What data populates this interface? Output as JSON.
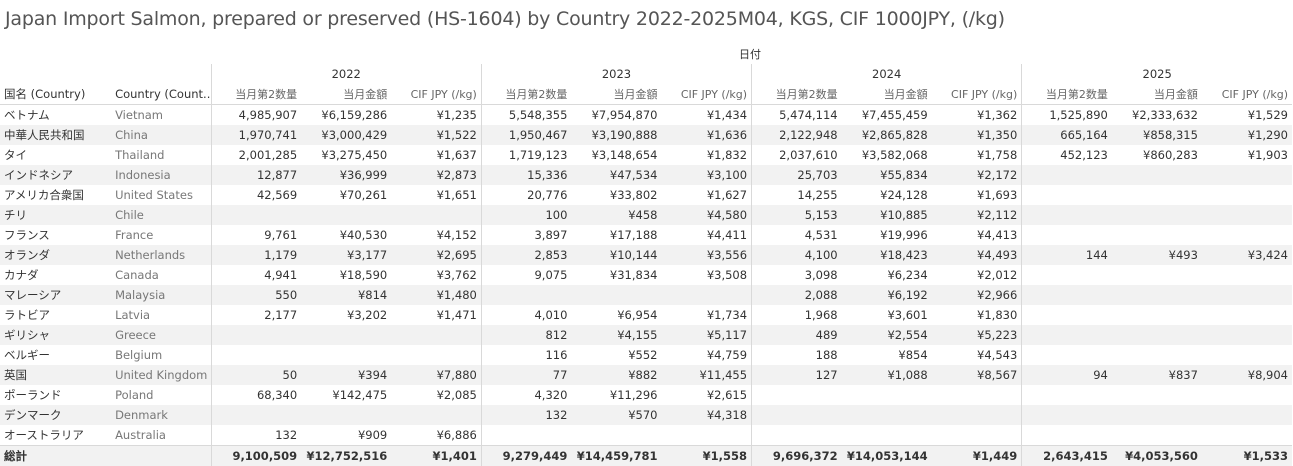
{
  "title": "Japan Import Salmon, prepared or preserved (HS-1604) by Country 2022-2025M04, KGS, CIF 1000JPY, (/kg)",
  "date_header": "日付",
  "row_headers": [
    "国名 (Country)",
    "Country (Count.."
  ],
  "years": [
    "2022",
    "2023",
    "2024",
    "2025"
  ],
  "measures": [
    "当月第2数量",
    "当月金額",
    "CIF JPY (/kg)"
  ],
  "rows": [
    {
      "jp": "ベトナム",
      "en": "Vietnam",
      "v": [
        [
          "4,985,907",
          "¥6,159,286",
          "¥1,235"
        ],
        [
          "5,548,355",
          "¥7,954,870",
          "¥1,434"
        ],
        [
          "5,474,114",
          "¥7,455,459",
          "¥1,362"
        ],
        [
          "1,525,890",
          "¥2,333,632",
          "¥1,529"
        ]
      ]
    },
    {
      "jp": "中華人民共和国",
      "en": "China",
      "v": [
        [
          "1,970,741",
          "¥3,000,429",
          "¥1,522"
        ],
        [
          "1,950,467",
          "¥3,190,888",
          "¥1,636"
        ],
        [
          "2,122,948",
          "¥2,865,828",
          "¥1,350"
        ],
        [
          "665,164",
          "¥858,315",
          "¥1,290"
        ]
      ]
    },
    {
      "jp": "タイ",
      "en": "Thailand",
      "v": [
        [
          "2,001,285",
          "¥3,275,450",
          "¥1,637"
        ],
        [
          "1,719,123",
          "¥3,148,654",
          "¥1,832"
        ],
        [
          "2,037,610",
          "¥3,582,068",
          "¥1,758"
        ],
        [
          "452,123",
          "¥860,283",
          "¥1,903"
        ]
      ]
    },
    {
      "jp": "インドネシア",
      "en": "Indonesia",
      "v": [
        [
          "12,877",
          "¥36,999",
          "¥2,873"
        ],
        [
          "15,336",
          "¥47,534",
          "¥3,100"
        ],
        [
          "25,703",
          "¥55,834",
          "¥2,172"
        ],
        [
          "",
          "",
          ""
        ]
      ]
    },
    {
      "jp": "アメリカ合衆国",
      "en": "United States",
      "v": [
        [
          "42,569",
          "¥70,261",
          "¥1,651"
        ],
        [
          "20,776",
          "¥33,802",
          "¥1,627"
        ],
        [
          "14,255",
          "¥24,128",
          "¥1,693"
        ],
        [
          "",
          "",
          ""
        ]
      ]
    },
    {
      "jp": "チリ",
      "en": "Chile",
      "v": [
        [
          "",
          "",
          ""
        ],
        [
          "100",
          "¥458",
          "¥4,580"
        ],
        [
          "5,153",
          "¥10,885",
          "¥2,112"
        ],
        [
          "",
          "",
          ""
        ]
      ]
    },
    {
      "jp": "フランス",
      "en": "France",
      "v": [
        [
          "9,761",
          "¥40,530",
          "¥4,152"
        ],
        [
          "3,897",
          "¥17,188",
          "¥4,411"
        ],
        [
          "4,531",
          "¥19,996",
          "¥4,413"
        ],
        [
          "",
          "",
          ""
        ]
      ]
    },
    {
      "jp": "オランダ",
      "en": "Netherlands",
      "v": [
        [
          "1,179",
          "¥3,177",
          "¥2,695"
        ],
        [
          "2,853",
          "¥10,144",
          "¥3,556"
        ],
        [
          "4,100",
          "¥18,423",
          "¥4,493"
        ],
        [
          "144",
          "¥493",
          "¥3,424"
        ]
      ]
    },
    {
      "jp": "カナダ",
      "en": "Canada",
      "v": [
        [
          "4,941",
          "¥18,590",
          "¥3,762"
        ],
        [
          "9,075",
          "¥31,834",
          "¥3,508"
        ],
        [
          "3,098",
          "¥6,234",
          "¥2,012"
        ],
        [
          "",
          "",
          ""
        ]
      ]
    },
    {
      "jp": "マレーシア",
      "en": "Malaysia",
      "v": [
        [
          "550",
          "¥814",
          "¥1,480"
        ],
        [
          "",
          "",
          ""
        ],
        [
          "2,088",
          "¥6,192",
          "¥2,966"
        ],
        [
          "",
          "",
          ""
        ]
      ]
    },
    {
      "jp": "ラトビア",
      "en": "Latvia",
      "v": [
        [
          "2,177",
          "¥3,202",
          "¥1,471"
        ],
        [
          "4,010",
          "¥6,954",
          "¥1,734"
        ],
        [
          "1,968",
          "¥3,601",
          "¥1,830"
        ],
        [
          "",
          "",
          ""
        ]
      ]
    },
    {
      "jp": "ギリシャ",
      "en": "Greece",
      "v": [
        [
          "",
          "",
          ""
        ],
        [
          "812",
          "¥4,155",
          "¥5,117"
        ],
        [
          "489",
          "¥2,554",
          "¥5,223"
        ],
        [
          "",
          "",
          ""
        ]
      ]
    },
    {
      "jp": "ベルギー",
      "en": "Belgium",
      "v": [
        [
          "",
          "",
          ""
        ],
        [
          "116",
          "¥552",
          "¥4,759"
        ],
        [
          "188",
          "¥854",
          "¥4,543"
        ],
        [
          "",
          "",
          ""
        ]
      ]
    },
    {
      "jp": "英国",
      "en": "United Kingdom",
      "v": [
        [
          "50",
          "¥394",
          "¥7,880"
        ],
        [
          "77",
          "¥882",
          "¥11,455"
        ],
        [
          "127",
          "¥1,088",
          "¥8,567"
        ],
        [
          "94",
          "¥837",
          "¥8,904"
        ]
      ]
    },
    {
      "jp": "ポーランド",
      "en": "Poland",
      "v": [
        [
          "68,340",
          "¥142,475",
          "¥2,085"
        ],
        [
          "4,320",
          "¥11,296",
          "¥2,615"
        ],
        [
          "",
          "",
          ""
        ],
        [
          "",
          "",
          ""
        ]
      ]
    },
    {
      "jp": "デンマーク",
      "en": "Denmark",
      "v": [
        [
          "",
          "",
          ""
        ],
        [
          "132",
          "¥570",
          "¥4,318"
        ],
        [
          "",
          "",
          ""
        ],
        [
          "",
          "",
          ""
        ]
      ]
    },
    {
      "jp": "オーストラリア",
      "en": "Australia",
      "v": [
        [
          "132",
          "¥909",
          "¥6,886"
        ],
        [
          "",
          "",
          ""
        ],
        [
          "",
          "",
          ""
        ],
        [
          "",
          "",
          ""
        ]
      ]
    }
  ],
  "total": {
    "jp": "総計",
    "en": "",
    "v": [
      [
        "9,100,509",
        "¥12,752,516",
        "¥1,401"
      ],
      [
        "9,279,449",
        "¥14,459,781",
        "¥1,558"
      ],
      [
        "9,696,372",
        "¥14,053,144",
        "¥1,449"
      ],
      [
        "2,643,415",
        "¥4,053,560",
        "¥1,533"
      ]
    ]
  }
}
